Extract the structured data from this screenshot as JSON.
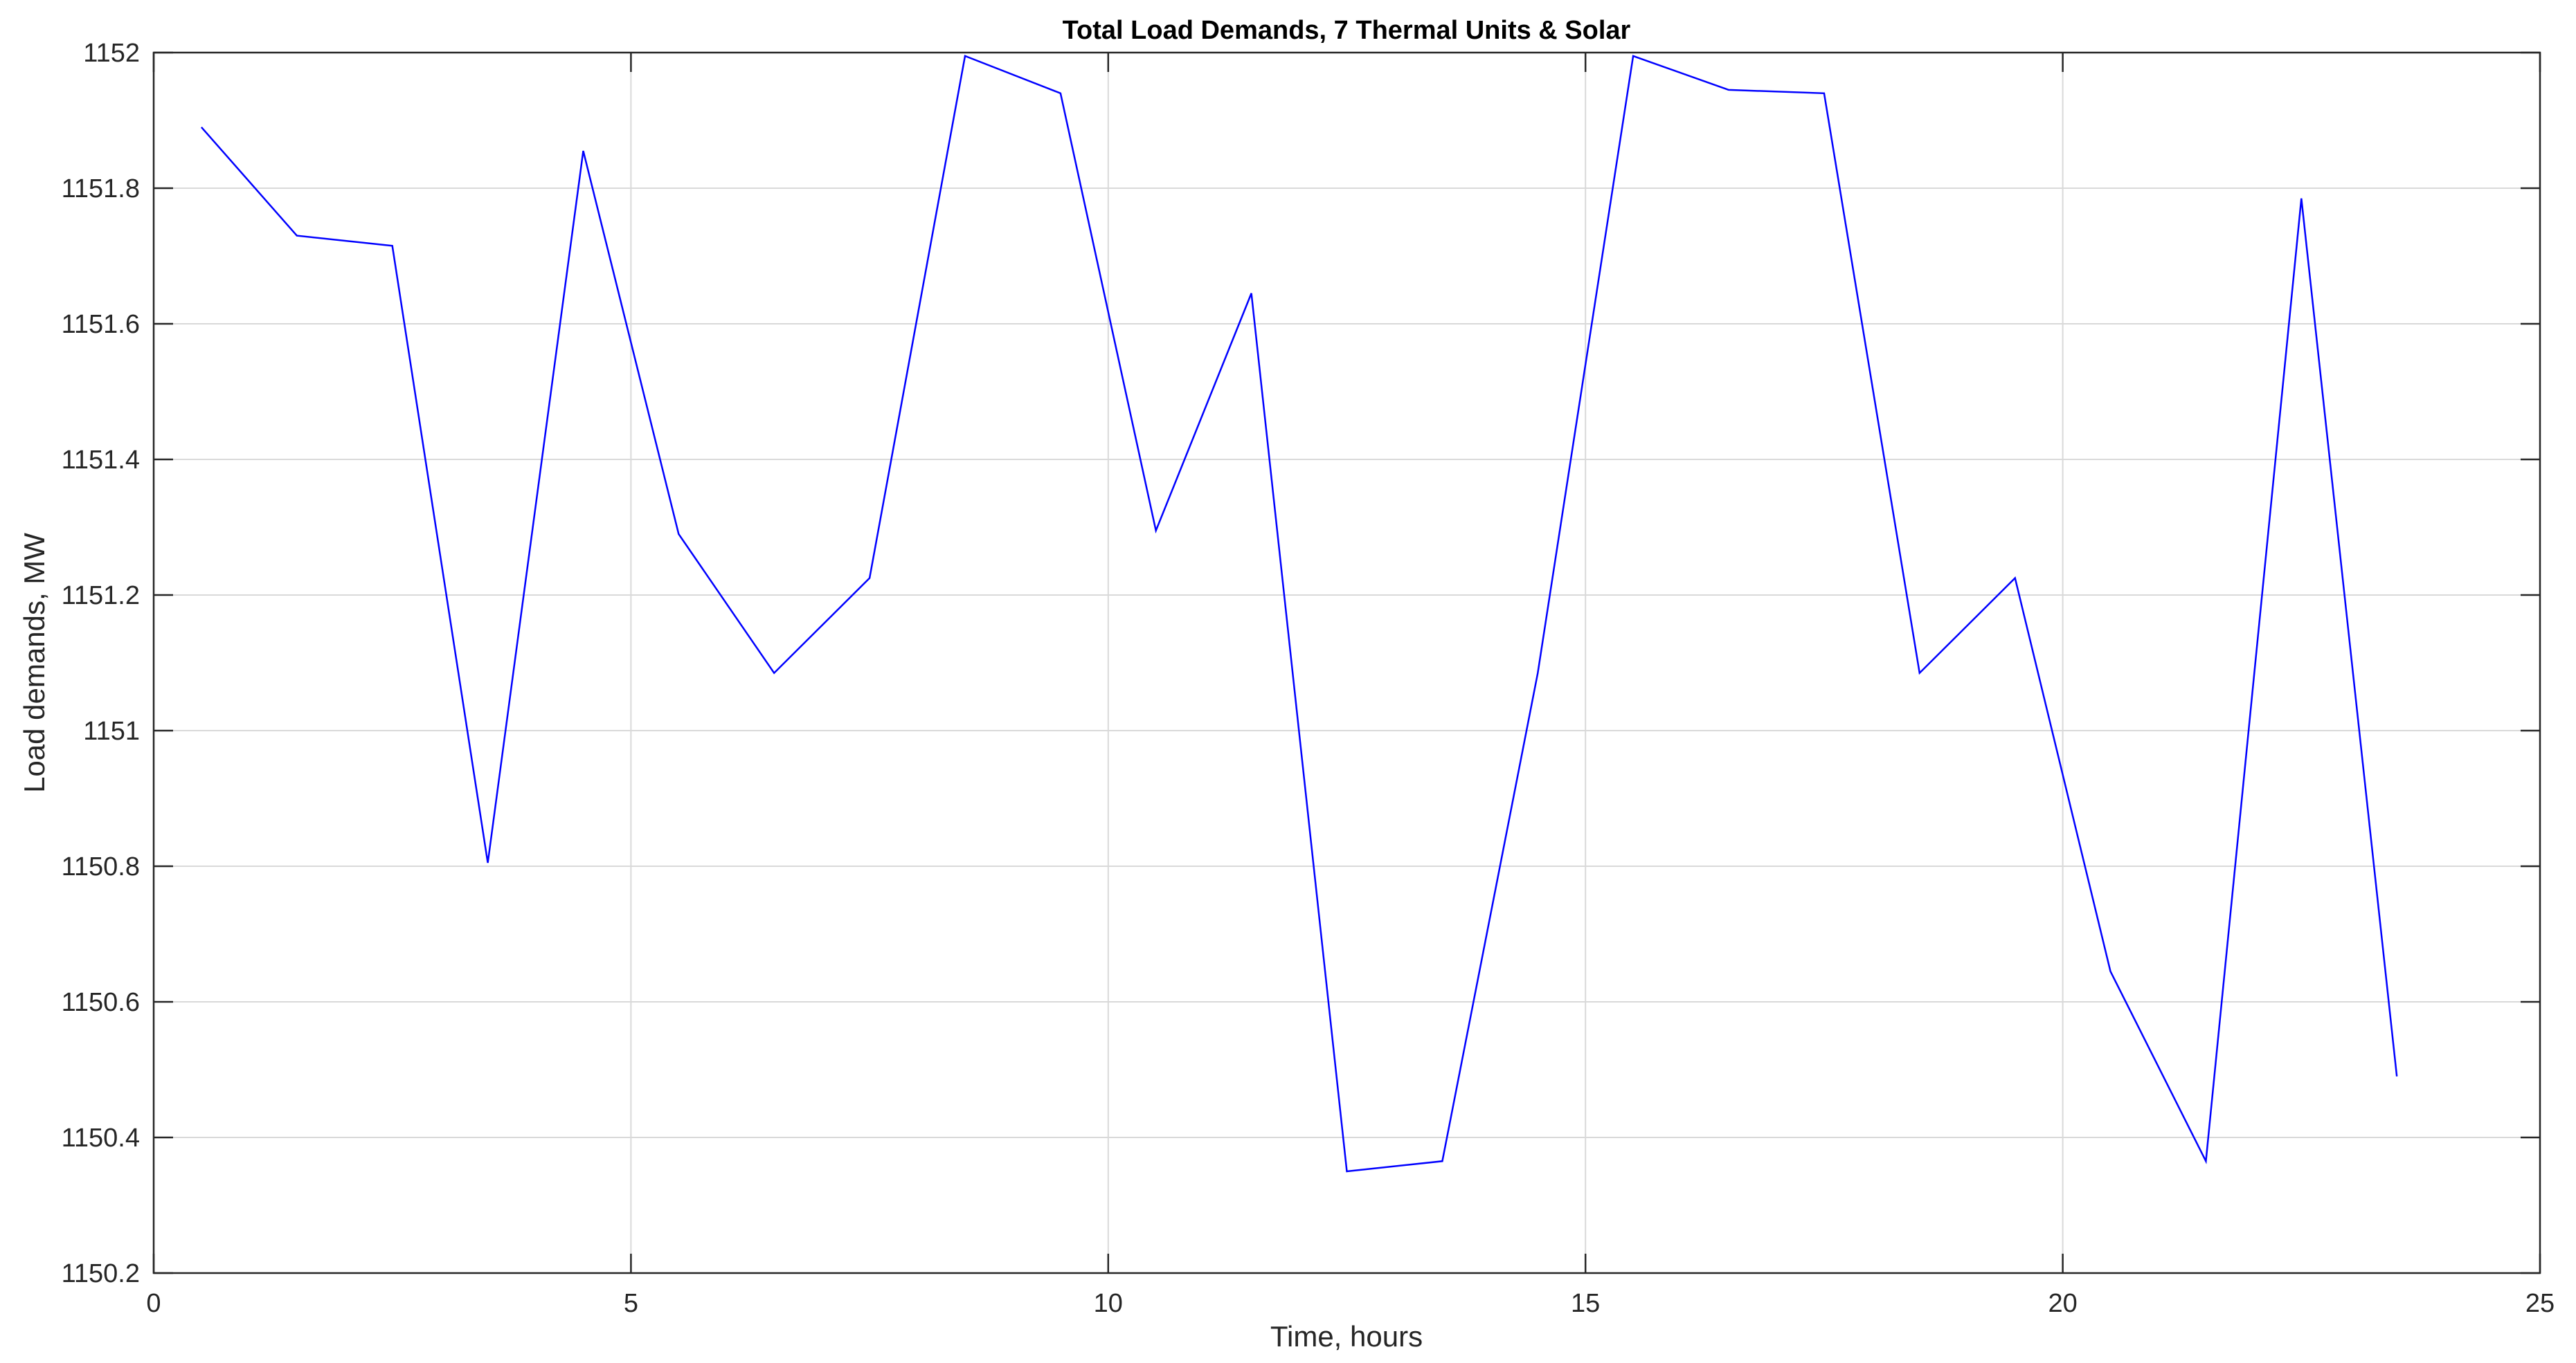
{
  "chart_data": {
    "type": "line",
    "title": "Total Load Demands, 7 Thermal Units & Solar",
    "xlabel": "Time, hours",
    "ylabel": "Load demands, MW",
    "xlim": [
      0,
      25
    ],
    "ylim": [
      1150.2,
      1152
    ],
    "xticks": [
      0,
      5,
      10,
      15,
      20,
      25
    ],
    "yticks": [
      1150.2,
      1150.4,
      1150.6,
      1150.8,
      1151,
      1151.2,
      1151.4,
      1151.6,
      1151.8,
      1152
    ],
    "xtick_labels": [
      "0",
      "5",
      "10",
      "15",
      "20",
      "25"
    ],
    "ytick_labels": [
      "1150.2",
      "1150.4",
      "1150.6",
      "1150.8",
      "1151",
      "1151.2",
      "1151.4",
      "1151.6",
      "1151.8",
      "1152"
    ],
    "grid": true,
    "line_color": "#0000ff",
    "grid_color": "#d9d9d9",
    "series": [
      {
        "x": [
          0.5,
          1.5,
          2.5,
          3.5,
          4.5,
          5.5,
          6.5,
          7.5,
          8.5,
          9.5,
          10.5,
          11.5,
          12.5,
          13.5,
          14.5,
          15.5,
          16.5,
          17.5,
          18.5,
          19.5,
          20.5,
          21.5,
          22.5,
          23.5
        ],
        "values": [
          1151.89,
          1151.73,
          1151.715,
          1150.805,
          1151.855,
          1151.29,
          1151.085,
          1151.225,
          1151.995,
          1151.94,
          1151.295,
          1151.645,
          1150.35,
          1150.365,
          1151.085,
          1151.995,
          1151.945,
          1151.94,
          1151.085,
          1151.225,
          1150.645,
          1150.365,
          1151.785,
          1150.49
        ]
      }
    ]
  }
}
